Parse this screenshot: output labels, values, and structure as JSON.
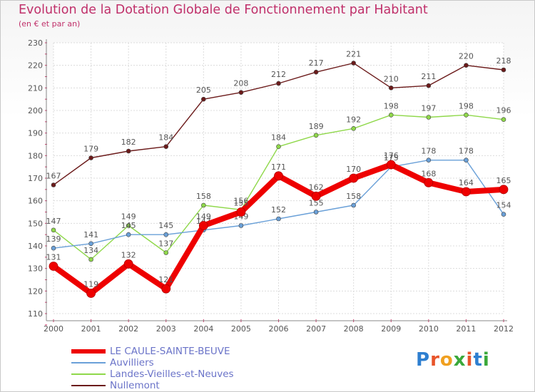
{
  "title": "Evolution de la Dotation Globale de Fonctionnement par Habitant",
  "subtitle": "(en € et par an)",
  "logo": "Proxiti",
  "chart_data": {
    "type": "line",
    "title": "Evolution de la Dotation Globale de Fonctionnement par Habitant",
    "subtitle": "(en € et par an)",
    "x": [
      "2000",
      "2001",
      "2002",
      "2003",
      "2004",
      "2005",
      "2006",
      "2007",
      "2008",
      "2009",
      "2010",
      "2011",
      "2012"
    ],
    "ylim": [
      110,
      230
    ],
    "yticks": [
      110,
      120,
      130,
      140,
      150,
      160,
      170,
      180,
      190,
      200,
      210,
      220,
      230
    ],
    "grid": true,
    "series": [
      {
        "name": "Nullemont",
        "color": "#6b1a1a",
        "values": [
          167,
          179,
          182,
          184,
          205,
          208,
          212,
          217,
          221,
          210,
          211,
          220,
          218
        ]
      },
      {
        "name": "Landes-Vieilles-et-Neuves",
        "color": "#8fd84a",
        "values": [
          147,
          134,
          149,
          137,
          158,
          156,
          184,
          189,
          192,
          198,
          197,
          198,
          196
        ]
      },
      {
        "name": "Auvilliers",
        "color": "#6aa0d8",
        "values": [
          139,
          141,
          145,
          145,
          147,
          149,
          152,
          155,
          158,
          175,
          178,
          178,
          154
        ]
      },
      {
        "name": "LE CAULE-SAINTE-BEUVE",
        "color": "#ee0000",
        "values": [
          131,
          119,
          132,
          121,
          149,
          155,
          171,
          162,
          170,
          176,
          168,
          164,
          165
        ]
      }
    ],
    "legend": [
      "LE CAULE-SAINTE-BEUVE",
      "Auvilliers",
      "Landes-Vieilles-et-Neuves",
      "Nullemont"
    ]
  }
}
